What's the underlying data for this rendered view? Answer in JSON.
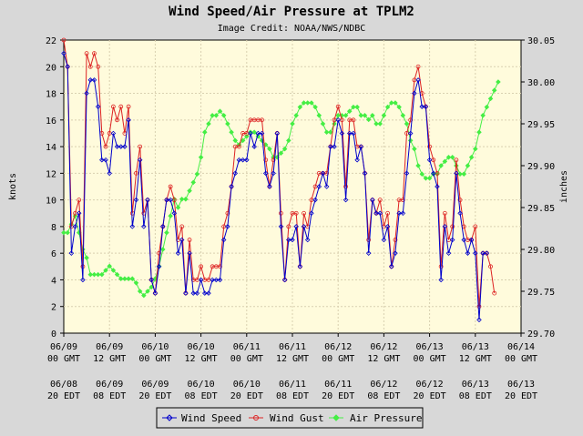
{
  "chart_data": {
    "type": "line",
    "title": "Wind Speed/Air Pressure at TPLM2",
    "subtitle": "Image Credit: NOAA/NWS/NDBC",
    "ylabel_left": "knots",
    "ylabel_right": "inches",
    "ylim_left": [
      0,
      22
    ],
    "ylim_right": [
      29.7,
      30.05
    ],
    "yticks_left": [
      "0",
      "2",
      "4",
      "6",
      "8",
      "10",
      "12",
      "14",
      "16",
      "18",
      "20",
      "22"
    ],
    "yticks_right": [
      "29.70",
      "29.75",
      "29.80",
      "29.85",
      "29.90",
      "29.95",
      "30.00",
      "30.05"
    ],
    "xlim_hours": [
      0,
      120
    ],
    "xticks": [
      {
        "gmt1": "06/09",
        "gmt2": "00 GMT",
        "edt1": "06/08",
        "edt2": "20 EDT"
      },
      {
        "gmt1": "06/09",
        "gmt2": "12 GMT",
        "edt1": "06/09",
        "edt2": "08 EDT"
      },
      {
        "gmt1": "06/10",
        "gmt2": "00 GMT",
        "edt1": "06/09",
        "edt2": "20 EDT"
      },
      {
        "gmt1": "06/10",
        "gmt2": "12 GMT",
        "edt1": "06/10",
        "edt2": "08 EDT"
      },
      {
        "gmt1": "06/11",
        "gmt2": "00 GMT",
        "edt1": "06/10",
        "edt2": "20 EDT"
      },
      {
        "gmt1": "06/11",
        "gmt2": "12 GMT",
        "edt1": "06/11",
        "edt2": "08 EDT"
      },
      {
        "gmt1": "06/12",
        "gmt2": "00 GMT",
        "edt1": "06/11",
        "edt2": "20 EDT"
      },
      {
        "gmt1": "06/12",
        "gmt2": "12 GMT",
        "edt1": "06/12",
        "edt2": "08 EDT"
      },
      {
        "gmt1": "06/13",
        "gmt2": "00 GMT",
        "edt1": "06/12",
        "edt2": "20 EDT"
      },
      {
        "gmt1": "06/13",
        "gmt2": "12 GMT",
        "edt1": "06/13",
        "edt2": "08 EDT"
      },
      {
        "gmt1": "06/14",
        "gmt2": "00 GMT",
        "edt1": "06/13",
        "edt2": "20 EDT"
      }
    ],
    "legend": {
      "placement": "bottom",
      "entries": [
        "Wind Speed",
        "Wind Gust",
        "Air Pressure"
      ]
    },
    "colors": {
      "plot_bg": "#fffbdc",
      "outer_bg": "#d8d8d8",
      "grid": "#d9d0b0",
      "speed": "#0000cc",
      "gust": "#dd2222",
      "pressure": "#44ee44"
    },
    "series": [
      {
        "name": "Wind Speed",
        "axis": "left",
        "x": [
          0,
          1,
          2,
          3,
          4,
          5,
          6,
          7,
          8,
          9,
          10,
          11,
          12,
          13,
          14,
          15,
          16,
          17,
          18,
          19,
          20,
          21,
          22,
          23,
          24,
          25,
          26,
          27,
          28,
          29,
          30,
          31,
          32,
          33,
          34,
          35,
          36,
          37,
          38,
          39,
          40,
          41,
          42,
          43,
          44,
          45,
          46,
          47,
          48,
          49,
          50,
          51,
          52,
          53,
          54,
          55,
          56,
          57,
          58,
          59,
          60,
          61,
          62,
          63,
          64,
          65,
          66,
          67,
          68,
          69,
          70,
          71,
          72,
          73,
          74,
          75,
          76,
          77,
          78,
          79,
          80,
          81,
          82,
          83,
          84,
          85,
          86,
          87,
          88,
          89,
          90,
          91,
          92,
          93,
          94,
          95,
          96,
          97,
          98,
          99,
          100,
          101,
          102,
          103,
          104,
          105,
          106,
          107,
          108,
          109,
          110,
          111
        ],
        "values": [
          21,
          20,
          6,
          8,
          9,
          4,
          18,
          19,
          19,
          17,
          13,
          13,
          12,
          15,
          14,
          14,
          14,
          16,
          8,
          10,
          13,
          8,
          10,
          4,
          3,
          5,
          8,
          10,
          10,
          9,
          6,
          7,
          3,
          6,
          3,
          3,
          4,
          3,
          3,
          4,
          4,
          4,
          7,
          8,
          11,
          12,
          13,
          13,
          13,
          15,
          14,
          15,
          15,
          12,
          11,
          12,
          15,
          8,
          4,
          7,
          7,
          8,
          5,
          8,
          7,
          9,
          10,
          11,
          12,
          11,
          14,
          14,
          16,
          15,
          10,
          15,
          15,
          13,
          14,
          12,
          6,
          10,
          9,
          9,
          7,
          8,
          5,
          6,
          9,
          9,
          12,
          15,
          18,
          19,
          17,
          17,
          13,
          12,
          11,
          4,
          8,
          6,
          7,
          12,
          9,
          7,
          6,
          7,
          6,
          1,
          6,
          6
        ],
        "values_note": "read off chart, data units"
      },
      {
        "name": "Wind Gust",
        "axis": "left",
        "x": [
          0,
          1,
          2,
          3,
          4,
          5,
          6,
          7,
          8,
          9,
          10,
          11,
          12,
          13,
          14,
          15,
          16,
          17,
          18,
          19,
          20,
          21,
          22,
          23,
          24,
          25,
          26,
          27,
          28,
          29,
          30,
          31,
          32,
          33,
          34,
          35,
          36,
          37,
          38,
          39,
          40,
          41,
          42,
          43,
          44,
          45,
          46,
          47,
          48,
          49,
          50,
          51,
          52,
          53,
          54,
          55,
          56,
          57,
          58,
          59,
          60,
          61,
          62,
          63,
          64,
          65,
          66,
          67,
          68,
          69,
          70,
          71,
          72,
          73,
          74,
          75,
          76,
          77,
          78,
          79,
          80,
          81,
          82,
          83,
          84,
          85,
          86,
          87,
          88,
          89,
          90,
          91,
          92,
          93,
          94,
          95,
          96,
          97,
          98,
          99,
          100,
          101,
          102,
          103,
          104,
          105,
          106,
          107,
          108,
          109,
          110,
          111,
          112,
          113
        ],
        "values": [
          22,
          20,
          8,
          9,
          10,
          5,
          21,
          20,
          21,
          20,
          15,
          14,
          15,
          17,
          16,
          17,
          15,
          17,
          9,
          12,
          14,
          9,
          10,
          4,
          3,
          6,
          8,
          10,
          11,
          10,
          7,
          8,
          3,
          7,
          4,
          4,
          5,
          4,
          4,
          5,
          5,
          5,
          8,
          9,
          11,
          14,
          14,
          15,
          15,
          16,
          16,
          16,
          16,
          13,
          11,
          13,
          15,
          9,
          4,
          8,
          9,
          9,
          5,
          9,
          8,
          10,
          11,
          12,
          12,
          12,
          14,
          16,
          17,
          16,
          11,
          16,
          16,
          14,
          14,
          12,
          7,
          10,
          9,
          10,
          8,
          9,
          5,
          7,
          10,
          10,
          15,
          16,
          19,
          20,
          18,
          17,
          14,
          13,
          12,
          5,
          9,
          7,
          8,
          13,
          10,
          8,
          7,
          7,
          8,
          2,
          6,
          6,
          5,
          3
        ]
      },
      {
        "name": "Air Pressure",
        "axis": "right",
        "x": [
          0,
          1,
          2,
          3,
          4,
          5,
          6,
          7,
          8,
          9,
          10,
          11,
          12,
          13,
          14,
          15,
          16,
          17,
          18,
          19,
          20,
          21,
          22,
          23,
          24,
          25,
          26,
          27,
          28,
          29,
          30,
          31,
          32,
          33,
          34,
          35,
          36,
          37,
          38,
          39,
          40,
          41,
          42,
          43,
          44,
          45,
          46,
          47,
          48,
          49,
          50,
          51,
          52,
          53,
          54,
          55,
          56,
          57,
          58,
          59,
          60,
          61,
          62,
          63,
          64,
          65,
          66,
          67,
          68,
          69,
          70,
          71,
          72,
          73,
          74,
          75,
          76,
          77,
          78,
          79,
          80,
          81,
          82,
          83,
          84,
          85,
          86,
          87,
          88,
          89,
          90,
          91,
          92,
          93,
          94,
          95,
          96,
          97,
          98,
          99,
          100,
          101,
          102,
          103,
          104,
          105,
          106,
          107,
          108,
          109,
          110,
          111,
          112,
          113,
          114
        ],
        "values": [
          29.82,
          29.82,
          29.83,
          29.84,
          29.82,
          29.8,
          29.79,
          29.77,
          29.77,
          29.77,
          29.77,
          29.775,
          29.78,
          29.775,
          29.77,
          29.765,
          29.765,
          29.765,
          29.765,
          29.76,
          29.75,
          29.745,
          29.75,
          29.755,
          29.765,
          29.78,
          29.8,
          29.82,
          29.84,
          29.86,
          29.85,
          29.86,
          29.86,
          29.87,
          29.88,
          29.89,
          29.91,
          29.94,
          29.95,
          29.96,
          29.96,
          29.965,
          29.96,
          29.95,
          29.94,
          29.93,
          29.925,
          29.93,
          29.935,
          29.94,
          29.94,
          29.935,
          29.93,
          29.925,
          29.92,
          29.91,
          29.91,
          29.915,
          29.92,
          29.93,
          29.95,
          29.96,
          29.97,
          29.975,
          29.975,
          29.975,
          29.97,
          29.96,
          29.95,
          29.94,
          29.94,
          29.95,
          29.96,
          29.96,
          29.96,
          29.965,
          29.97,
          29.97,
          29.96,
          29.96,
          29.955,
          29.96,
          29.95,
          29.95,
          29.96,
          29.97,
          29.975,
          29.975,
          29.97,
          29.96,
          29.95,
          29.93,
          29.92,
          29.9,
          29.89,
          29.885,
          29.885,
          29.89,
          29.89,
          29.9,
          29.905,
          29.91,
          29.91,
          29.9,
          29.89,
          29.89,
          29.9,
          29.91,
          29.92,
          29.94,
          29.96,
          29.97,
          29.98,
          29.99,
          30.0
        ]
      }
    ]
  }
}
